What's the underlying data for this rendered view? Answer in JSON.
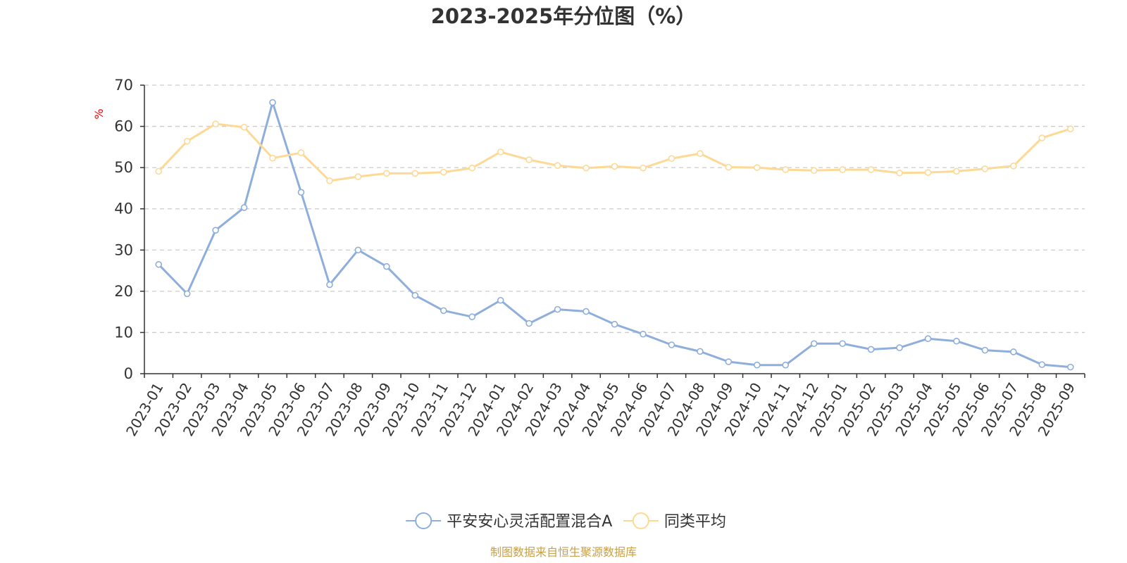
{
  "chart_data": {
    "type": "line",
    "title": "2023-2025年分位图（%）",
    "ylabel": "%",
    "xlabel": "",
    "ylim": [
      0,
      70
    ],
    "yticks": [
      0,
      10,
      20,
      30,
      40,
      50,
      60,
      70
    ],
    "grid": true,
    "legend_position": "bottom",
    "categories": [
      "2023-01",
      "2023-02",
      "2023-03",
      "2023-04",
      "2023-05",
      "2023-06",
      "2023-07",
      "2023-08",
      "2023-09",
      "2023-10",
      "2023-11",
      "2023-12",
      "2024-01",
      "2024-02",
      "2024-03",
      "2024-04",
      "2024-05",
      "2024-06",
      "2024-07",
      "2024-08",
      "2024-09",
      "2024-10",
      "2024-11",
      "2024-12",
      "2025-01",
      "2025-02",
      "2025-03",
      "2025-04",
      "2025-05",
      "2025-06",
      "2025-07",
      "2025-08",
      "2025-09"
    ],
    "series": [
      {
        "name": "平安安心灵活配置混合A",
        "color": "#8eaedb",
        "values": [
          26.5,
          19.4,
          34.8,
          40.3,
          65.8,
          44.0,
          21.6,
          30.0,
          26.0,
          19.0,
          15.3,
          13.8,
          17.8,
          12.2,
          15.6,
          15.1,
          12.0,
          9.6,
          7.0,
          5.4,
          2.9,
          2.1,
          2.1,
          7.3,
          7.3,
          5.9,
          6.3,
          8.5,
          7.9,
          5.7,
          5.3,
          2.2,
          1.6
        ]
      },
      {
        "name": "同类平均",
        "color": "#fdd996",
        "values": [
          49.1,
          56.4,
          60.6,
          59.8,
          52.3,
          53.6,
          46.8,
          47.8,
          48.6,
          48.6,
          48.9,
          49.9,
          53.8,
          51.9,
          50.5,
          49.9,
          50.3,
          49.9,
          52.2,
          53.4,
          50.1,
          50.0,
          49.5,
          49.3,
          49.5,
          49.5,
          48.7,
          48.8,
          49.1,
          49.7,
          50.4,
          57.2,
          59.4
        ]
      }
    ]
  },
  "source_text": "制图数据来自恒生聚源数据库",
  "colors": {
    "axis": "#333333",
    "grid": "#cccccc",
    "ylabel": "#ff0000",
    "source": "#c8a046"
  }
}
